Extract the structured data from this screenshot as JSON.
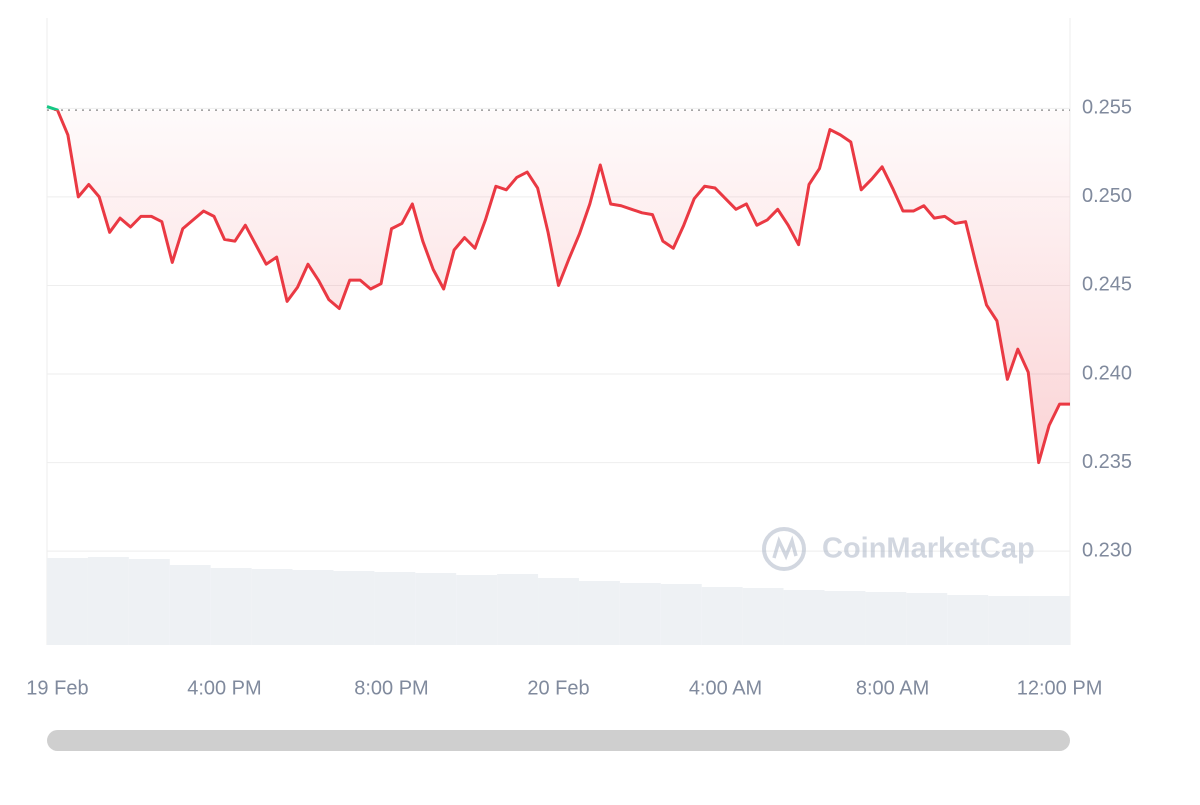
{
  "chart_data": {
    "type": "line",
    "x": [
      11.75,
      12,
      12.25,
      12.5,
      12.75,
      13,
      13.25,
      13.5,
      13.75,
      14,
      14.25,
      14.5,
      14.75,
      15,
      15.25,
      15.5,
      15.75,
      16,
      16.25,
      16.5,
      16.75,
      17,
      17.25,
      17.5,
      17.75,
      18,
      18.25,
      18.5,
      18.75,
      19,
      19.25,
      19.5,
      19.75,
      20,
      20.25,
      20.5,
      20.75,
      21,
      21.25,
      21.5,
      21.75,
      22,
      22.25,
      22.5,
      22.75,
      23,
      23.25,
      23.5,
      23.75,
      24,
      24.25,
      24.5,
      24.75,
      25,
      25.25,
      25.5,
      25.75,
      26,
      26.25,
      26.5,
      26.75,
      27,
      27.25,
      27.5,
      27.75,
      28,
      28.25,
      28.5,
      28.75,
      29,
      29.25,
      29.5,
      29.75,
      30,
      30.25,
      30.5,
      30.75,
      31,
      31.25,
      31.5,
      31.75,
      32,
      32.25,
      32.5,
      32.75,
      33,
      33.25,
      33.5,
      33.75,
      34,
      34.25,
      34.5,
      34.75,
      35,
      35.25,
      35.5,
      35.75,
      36,
      36.25
    ],
    "series": [
      {
        "color": "#ea3943",
        "above_color": "#16c784",
        "values": [
          0.2551,
          0.2549,
          0.2535,
          0.25,
          0.2507,
          0.25,
          0.248,
          0.2488,
          0.2483,
          0.2489,
          0.2489,
          0.2486,
          0.2463,
          0.2482,
          0.2487,
          0.2492,
          0.2489,
          0.2476,
          0.2475,
          0.2484,
          0.2473,
          0.2462,
          0.2466,
          0.2441,
          0.2449,
          0.2462,
          0.2453,
          0.2442,
          0.2437,
          0.2453,
          0.2453,
          0.2448,
          0.2451,
          0.2482,
          0.2485,
          0.2496,
          0.2475,
          0.2459,
          0.2448,
          0.247,
          0.2477,
          0.2471,
          0.2487,
          0.2506,
          0.2504,
          0.2511,
          0.2514,
          0.2505,
          0.248,
          0.245,
          0.2465,
          0.2479,
          0.2496,
          0.2518,
          0.2496,
          0.2495,
          0.2493,
          0.2491,
          0.249,
          0.2475,
          0.2471,
          0.2484,
          0.2499,
          0.2506,
          0.2505,
          0.2499,
          0.2493,
          0.2496,
          0.2484,
          0.2487,
          0.2493,
          0.2484,
          0.2473,
          0.2507,
          0.2516,
          0.2538,
          0.2535,
          0.2531,
          0.2504,
          0.251,
          0.2517,
          0.2505,
          0.2492,
          0.2492,
          0.2495,
          0.2488,
          0.2489,
          0.2485,
          0.2486,
          0.2462,
          0.2439,
          0.243,
          0.2397,
          0.2414,
          0.2401,
          0.235,
          0.2371,
          0.2383,
          0.2383
        ]
      }
    ],
    "baseline": 0.2549,
    "volume": {
      "color": "#eef1f4",
      "values": [
        87,
        88,
        86,
        80,
        77,
        76,
        75,
        74,
        73,
        72,
        70,
        71,
        67,
        64,
        62,
        61,
        58,
        57,
        55,
        54,
        53,
        52,
        50,
        49,
        49
      ]
    },
    "y2lim": [
      0,
      100
    ],
    "xlim": [
      11.75,
      36.25
    ],
    "xticks": [
      {
        "value": 12,
        "label": "19 Feb"
      },
      {
        "value": 16,
        "label": "4:00 PM"
      },
      {
        "value": 20,
        "label": "8:00 PM"
      },
      {
        "value": 24,
        "label": "20 Feb"
      },
      {
        "value": 28,
        "label": "4:00 AM"
      },
      {
        "value": 32,
        "label": "8:00 AM"
      },
      {
        "value": 36,
        "label": "12:00 PM"
      }
    ],
    "ylim": [
      0.2247,
      0.2601
    ],
    "yticks": [
      {
        "value": 0.23,
        "label": "0.230"
      },
      {
        "value": 0.235,
        "label": "0.235"
      },
      {
        "value": 0.24,
        "label": "0.240"
      },
      {
        "value": 0.245,
        "label": "0.245"
      },
      {
        "value": 0.25,
        "label": "0.250"
      },
      {
        "value": 0.255,
        "label": "0.255"
      }
    ],
    "grid": true,
    "watermark": "CoinMarketCap"
  }
}
